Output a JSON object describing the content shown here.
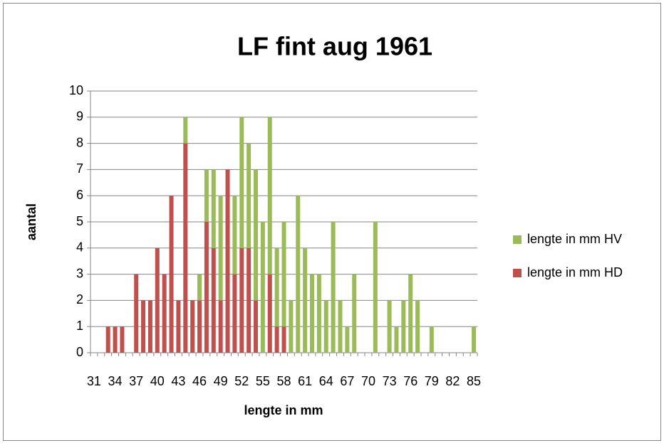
{
  "chart_data": {
    "type": "stacked_bar",
    "title": "LF fint  aug 1961",
    "x_label": "lengte in mm",
    "y_label": "aantal",
    "categories": [
      31,
      null,
      null,
      34,
      null,
      null,
      37,
      null,
      null,
      40,
      null,
      null,
      43,
      null,
      null,
      46,
      null,
      null,
      49,
      null,
      null,
      52,
      null,
      null,
      55,
      null,
      null,
      58,
      null,
      null,
      61,
      null,
      null,
      64,
      null,
      null,
      67,
      null,
      null,
      70,
      null,
      null,
      73,
      null,
      null,
      76,
      null,
      null,
      79,
      null,
      null,
      82,
      null,
      null,
      85
    ],
    "series": [
      {
        "name": "lengte in mm HV",
        "color": "#9bbb59",
        "values": [
          0,
          0,
          0,
          0,
          0,
          0,
          0,
          0,
          0,
          0,
          0,
          0,
          0,
          1,
          0,
          1,
          2,
          3,
          4,
          0,
          3,
          5,
          4,
          5,
          5,
          6,
          3,
          4,
          2,
          6,
          4,
          3,
          3,
          2,
          5,
          2,
          1,
          3,
          0,
          0,
          5,
          0,
          2,
          1,
          2,
          3,
          2,
          0,
          1,
          0,
          0,
          0,
          0,
          0,
          1
        ]
      },
      {
        "name": "lengte in mm HD",
        "color": "#c0504d",
        "values": [
          0,
          0,
          1,
          1,
          1,
          0,
          3,
          2,
          2,
          4,
          3,
          6,
          2,
          8,
          2,
          2,
          5,
          4,
          2,
          7,
          3,
          4,
          4,
          2,
          0,
          3,
          1,
          1,
          0,
          0,
          0,
          0,
          0,
          0,
          0,
          0,
          0,
          0,
          0,
          0,
          0,
          0,
          0,
          0,
          0,
          0,
          0,
          0,
          0,
          0,
          0,
          0,
          0,
          0,
          0
        ]
      }
    ],
    "stack_order": "last series at bottom",
    "ylim": [
      0,
      10
    ],
    "yticks": [
      0,
      1,
      2,
      3,
      4,
      5,
      6,
      7,
      8,
      9,
      10
    ],
    "grid": true,
    "legend": "right"
  }
}
